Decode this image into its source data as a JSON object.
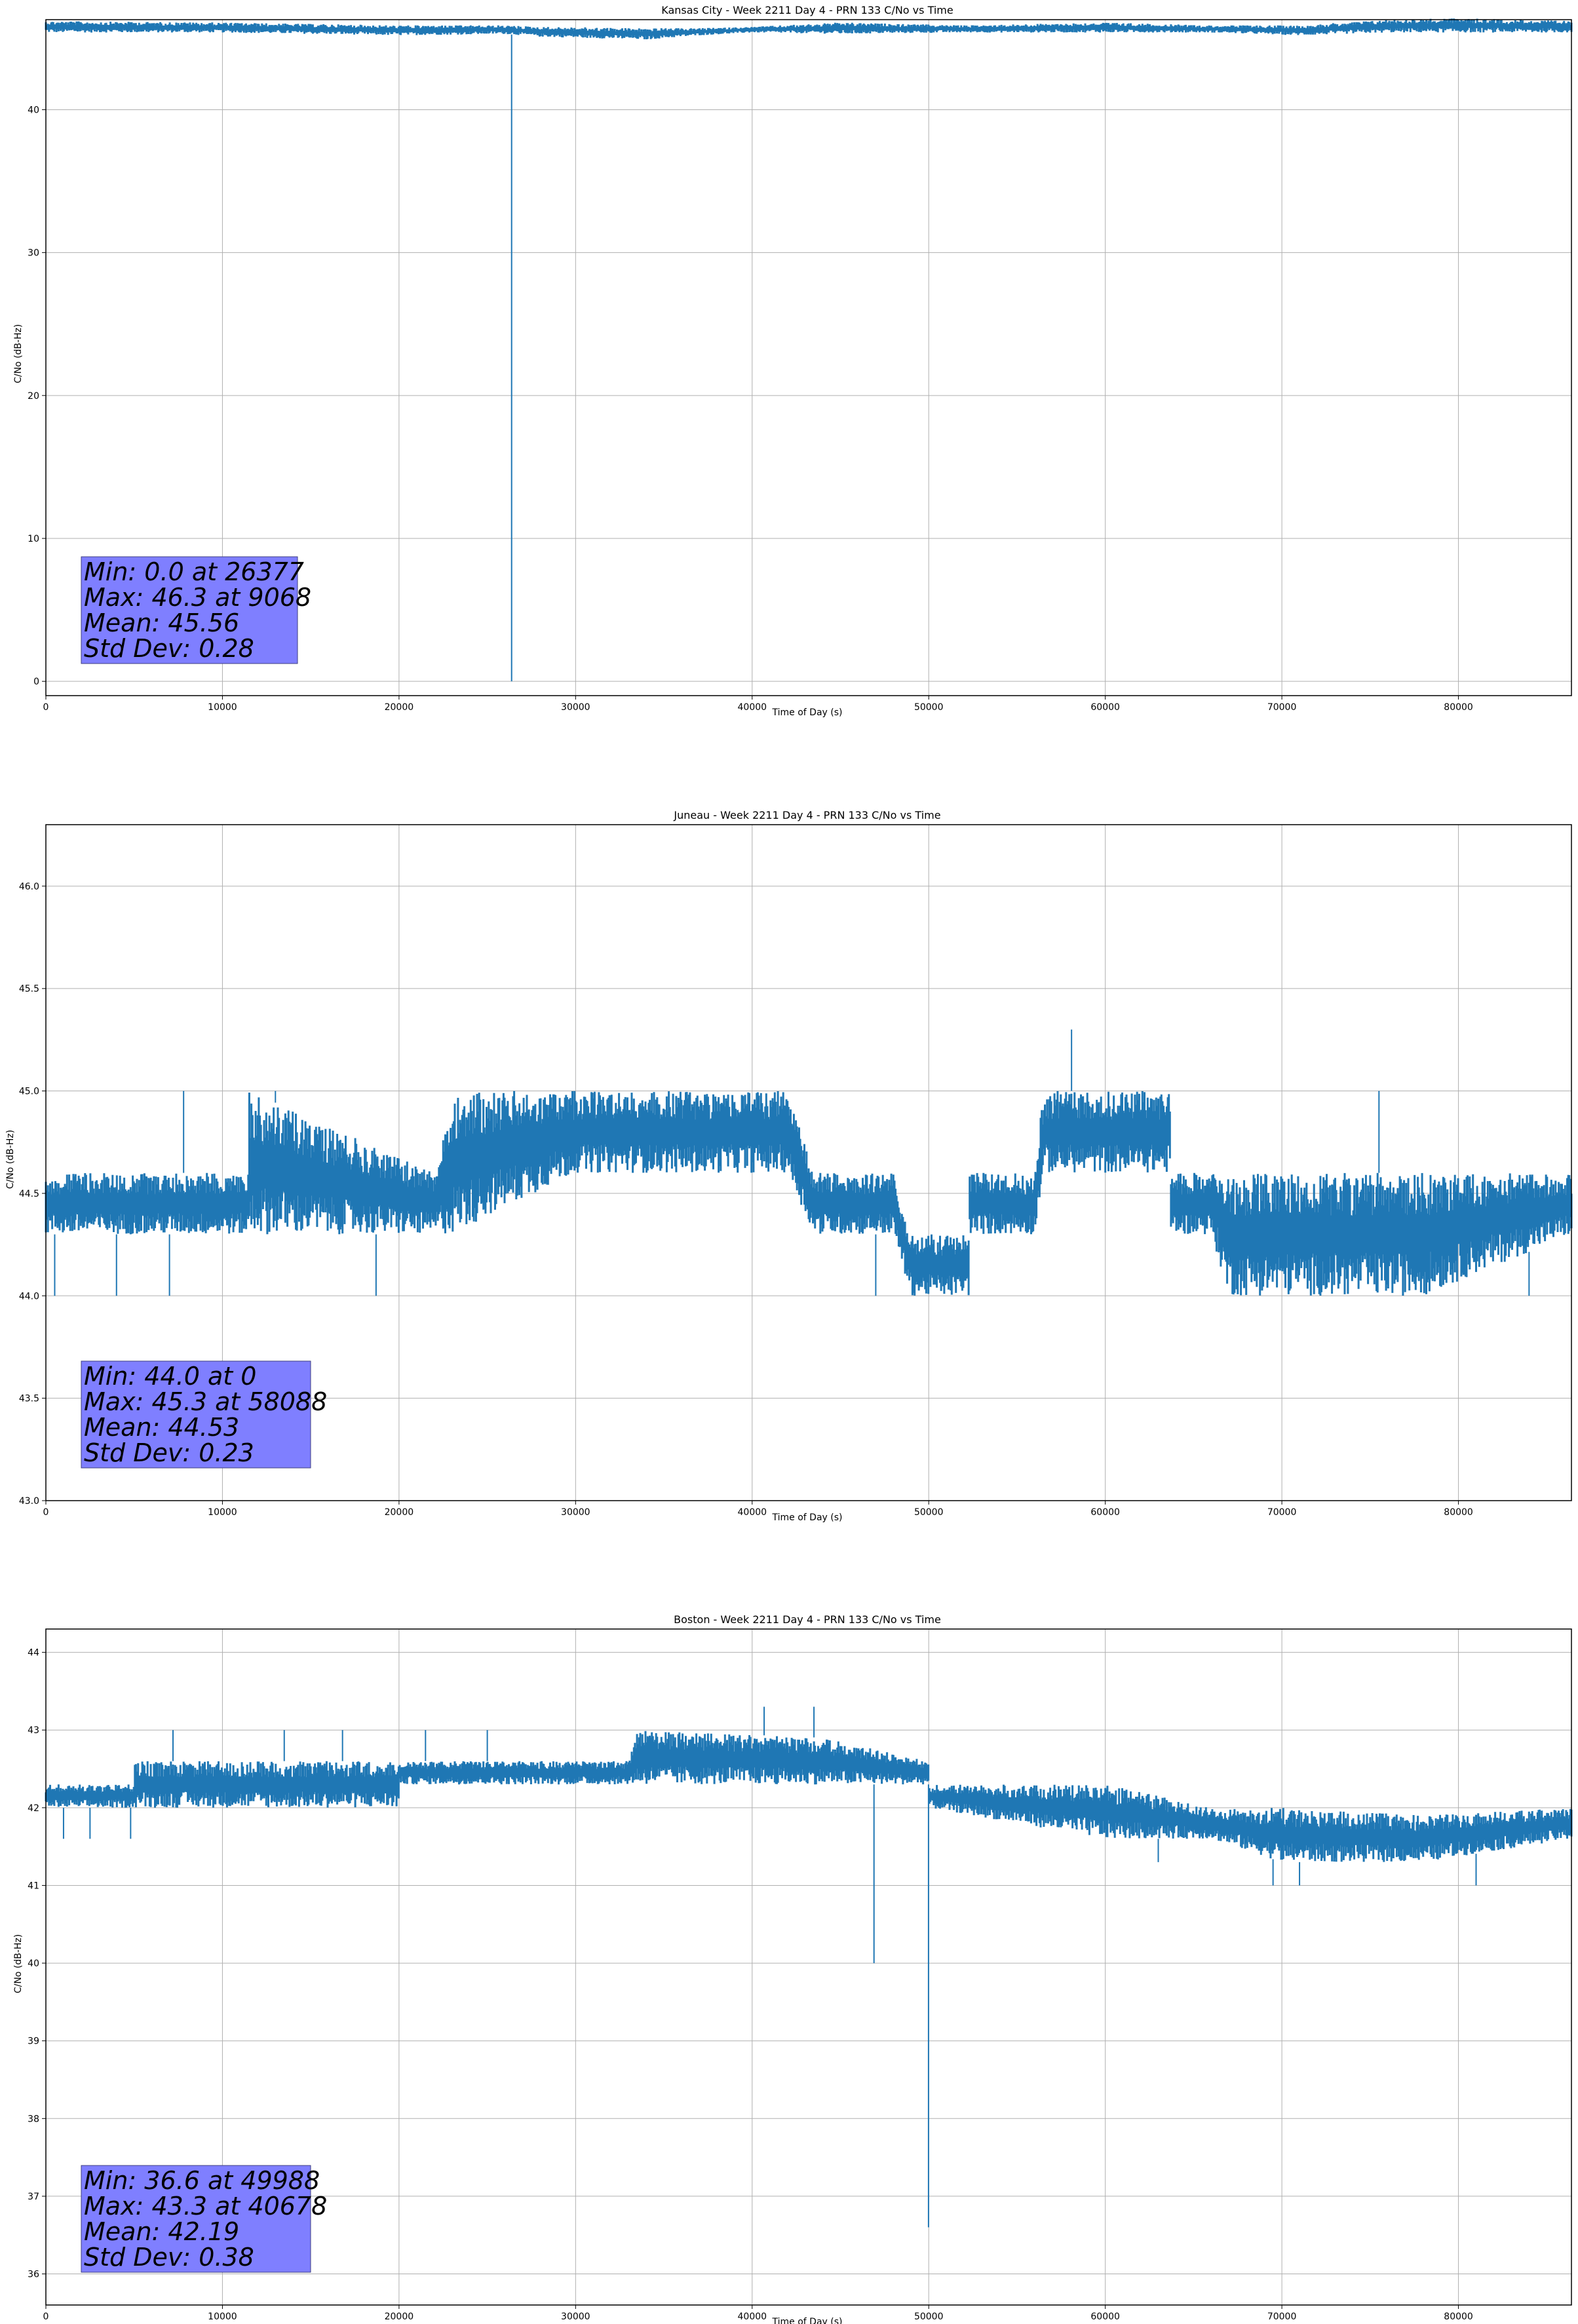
{
  "chart_data": [
    {
      "type": "line",
      "title": "Kansas City - Week 2211 Day 4 - PRN 133 C/No vs Time",
      "xlabel": "Time of Day (s)",
      "ylabel": "C/No (dB-Hz)",
      "xlim": [
        0,
        86400
      ],
      "ylim": [
        -1,
        46.3
      ],
      "xticks": [
        0,
        10000,
        20000,
        30000,
        40000,
        50000,
        60000,
        70000,
        80000
      ],
      "yticks": [
        0,
        10,
        20,
        30,
        40
      ],
      "ytick_labels": [
        "0",
        "10",
        "20",
        "30",
        "40"
      ],
      "grid": true,
      "line_color": "#1f77b4",
      "series": [
        {
          "band": [
            [
              0,
              45.4,
              46.2
            ],
            [
              10000,
              45.4,
              46.1
            ],
            [
              20000,
              45.2,
              45.9
            ],
            [
              26000,
              45.3,
              45.9
            ],
            [
              28000,
              45.1,
              45.8
            ],
            [
              34000,
              44.9,
              45.7
            ],
            [
              37000,
              45.2,
              45.7
            ],
            [
              40000,
              45.4,
              45.8
            ],
            [
              45000,
              45.3,
              46.1
            ],
            [
              52000,
              45.4,
              45.9
            ],
            [
              60000,
              45.4,
              46.1
            ],
            [
              66000,
              45.4,
              45.9
            ],
            [
              71000,
              45.2,
              45.9
            ],
            [
              76000,
              45.4,
              46.3
            ],
            [
              80000,
              45.4,
              46.4
            ],
            [
              86400,
              45.4,
              46.2
            ]
          ],
          "dips": [
            [
              26377,
              0.0
            ]
          ]
        }
      ],
      "stats": [
        "Min: 0.0 at 26377",
        "Max: 46.3 at 9068",
        "Mean: 45.56",
        "Std Dev: 0.28"
      ]
    },
    {
      "type": "line",
      "title": "Juneau - Week 2211 Day 4 - PRN 133 C/No vs Time",
      "xlabel": "Time of Day (s)",
      "ylabel": "C/No (dB-Hz)",
      "xlim": [
        0,
        86400
      ],
      "ylim": [
        43.0,
        46.3
      ],
      "xticks": [
        0,
        10000,
        20000,
        30000,
        40000,
        50000,
        60000,
        70000,
        80000
      ],
      "yticks": [
        43.0,
        43.5,
        44.0,
        44.5,
        45.0,
        45.5,
        46.0
      ],
      "ytick_labels": [
        "43.0",
        "43.5",
        "44.0",
        "44.5",
        "45.0",
        "45.5",
        "46.0"
      ],
      "grid": true,
      "line_color": "#1f77b4",
      "series": [
        {
          "band": [
            [
              0,
              44.3,
              44.6
            ],
            [
              11500,
              44.3,
              44.6
            ],
            [
              11500,
              44.3,
              45.0
            ],
            [
              22000,
              44.3,
              44.6
            ],
            [
              23000,
              44.3,
              45.0
            ],
            [
              30000,
              44.6,
              45.0
            ],
            [
              42000,
              44.6,
              45.0
            ],
            [
              43500,
              44.3,
              44.6
            ],
            [
              48000,
              44.3,
              44.6
            ],
            [
              49000,
              44.0,
              44.3
            ],
            [
              52300,
              44.0,
              44.3
            ],
            [
              52300,
              44.3,
              44.6
            ],
            [
              56000,
              44.3,
              44.6
            ],
            [
              56500,
              44.6,
              45.0
            ],
            [
              63700,
              44.6,
              45.0
            ],
            [
              63700,
              44.3,
              44.6
            ],
            [
              66000,
              44.3,
              44.6
            ],
            [
              67000,
              44.0,
              44.6
            ],
            [
              78000,
              44.0,
              44.6
            ],
            [
              86400,
              44.3,
              44.6
            ]
          ],
          "spikes_up": [
            [
              7800,
              45.0
            ],
            [
              13000,
              45.0
            ],
            [
              58088,
              45.3
            ],
            [
              75500,
              45.0
            ]
          ],
          "spikes_down": [
            [
              500,
              44.0
            ],
            [
              4000,
              44.0
            ],
            [
              7000,
              44.0
            ],
            [
              18700,
              44.0
            ],
            [
              47000,
              44.0
            ],
            [
              84000,
              44.0
            ]
          ]
        }
      ],
      "stats": [
        "Min: 44.0 at 0",
        "Max: 45.3 at 58088",
        "Mean: 44.53",
        "Std Dev: 0.23"
      ]
    },
    {
      "type": "line",
      "title": "Boston - Week 2211 Day 4 - PRN 133 C/No vs Time",
      "xlabel": "Time of Day (s)",
      "ylabel": "C/No (dB-Hz)",
      "xlim": [
        0,
        86400
      ],
      "ylim": [
        35.6,
        44.3
      ],
      "xticks": [
        0,
        10000,
        20000,
        30000,
        40000,
        50000,
        60000,
        70000,
        80000
      ],
      "yticks": [
        36,
        37,
        38,
        39,
        40,
        41,
        42,
        43,
        44
      ],
      "ytick_labels": [
        "36",
        "37",
        "38",
        "39",
        "40",
        "41",
        "42",
        "43",
        "44"
      ],
      "grid": true,
      "line_color": "#1f77b4",
      "series": [
        {
          "band": [
            [
              0,
              42.0,
              42.3
            ],
            [
              5000,
              42.0,
              42.3
            ],
            [
              5000,
              42.0,
              42.6
            ],
            [
              20000,
              42.0,
              42.6
            ],
            [
              20000,
              42.3,
              42.6
            ],
            [
              33000,
              42.3,
              42.6
            ],
            [
              33500,
              42.3,
              43.0
            ],
            [
              44000,
              42.3,
              42.9
            ],
            [
              50000,
              42.3,
              42.6
            ],
            [
              50000,
              42.0,
              42.3
            ],
            [
              60000,
              41.6,
              42.3
            ],
            [
              66000,
              41.6,
              42.0
            ],
            [
              70000,
              41.3,
              42.0
            ],
            [
              78000,
              41.3,
              41.9
            ],
            [
              86400,
              41.6,
              42.0
            ]
          ],
          "spikes_up": [
            [
              7200,
              43.0
            ],
            [
              13500,
              43.0
            ],
            [
              16800,
              43.0
            ],
            [
              21500,
              43.0
            ],
            [
              25000,
              43.0
            ],
            [
              40678,
              43.3
            ],
            [
              43500,
              43.3
            ]
          ],
          "spikes_down": [
            [
              1000,
              41.6
            ],
            [
              2500,
              41.6
            ],
            [
              4800,
              41.6
            ],
            [
              46900,
              40.0
            ],
            [
              49988,
              36.6
            ],
            [
              63000,
              41.3
            ],
            [
              69500,
              41.0
            ],
            [
              71000,
              41.0
            ],
            [
              81000,
              41.0
            ]
          ]
        }
      ],
      "stats": [
        "Min: 36.6 at 49988",
        "Max: 43.3 at 40678",
        "Mean: 42.19",
        "Std Dev: 0.38"
      ]
    }
  ]
}
